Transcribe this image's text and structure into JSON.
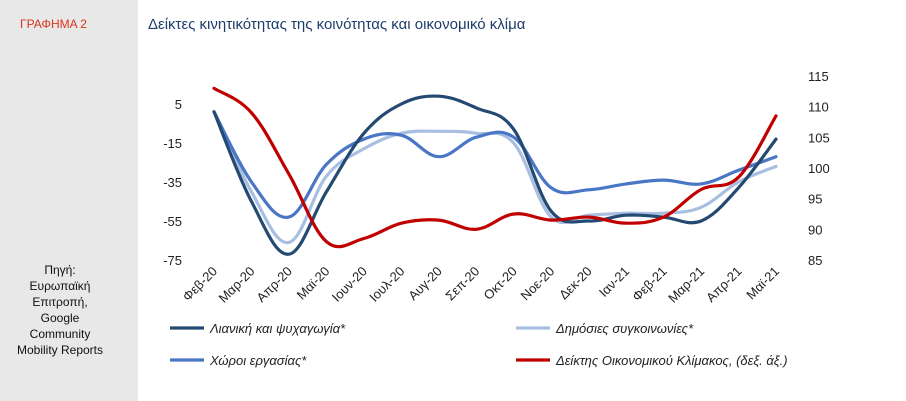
{
  "figure_label": "ΓΡΑΦΗΜΑ 2",
  "source_lines": [
    "Πηγή:",
    "Ευρωπαϊκή",
    "Επιτροπή,",
    "Google",
    "Community",
    "Mobility Reports"
  ],
  "chart_data": {
    "type": "line",
    "title": "Δείκτες κινητικότητας της κοινότητας και οικονομικό κλίμα",
    "x": [
      "Φεβ-20",
      "Μαρ-20",
      "Απρ-20",
      "Μαϊ-20",
      "Ιουν-20",
      "Ιουλ-20",
      "Αυγ-20",
      "Σεπ-20",
      "Οκτ-20",
      "Νοε-20",
      "Δεκ-20",
      "Ιαν-21",
      "Φεβ-21",
      "Μαρ-21",
      "Απρ-21",
      "Μαϊ-21"
    ],
    "left_axis": {
      "ylim": [
        -75,
        15
      ],
      "ticks": [
        "5",
        "-15",
        "-35",
        "-55",
        "-75"
      ]
    },
    "right_axis": {
      "ylim": [
        85,
        117
      ],
      "ticks": [
        "115",
        "110",
        "105",
        "100",
        "95",
        "90",
        "85"
      ]
    },
    "legend": "bottom",
    "series": [
      {
        "name": "Λιανική και ψυχαγωγία*",
        "axis": "left",
        "color": "#244a72",
        "values": [
          1,
          -45,
          -72,
          -40,
          -10,
          5,
          9,
          3,
          -8,
          -50,
          -55,
          -52,
          -53,
          -55,
          -38,
          -13
        ]
      },
      {
        "name": "Δημόσιες συγκοινωνίες*",
        "axis": "left",
        "color": "#a8bfe2",
        "values": [
          1,
          -40,
          -66,
          -32,
          -18,
          -10,
          -9,
          -10,
          -15,
          -53,
          -52,
          -51,
          -51,
          -48,
          -35,
          -27
        ]
      },
      {
        "name": "Χώροι εργασίας*",
        "axis": "left",
        "color": "#4a76c6",
        "values": [
          1,
          -35,
          -53,
          -26,
          -13,
          -11,
          -22,
          -12,
          -12,
          -38,
          -39,
          -36,
          -34,
          -36,
          -29,
          -22
        ]
      },
      {
        "name": "Δείκτης Οικονομικού Κλίμακος, (δεξ. άξ.)",
        "axis": "right",
        "color": "#c00000",
        "values": [
          113,
          109,
          99,
          88,
          88.5,
          91,
          91.5,
          90,
          92.5,
          91.5,
          92,
          91,
          92,
          96.5,
          98.5,
          108.5
        ]
      }
    ]
  }
}
